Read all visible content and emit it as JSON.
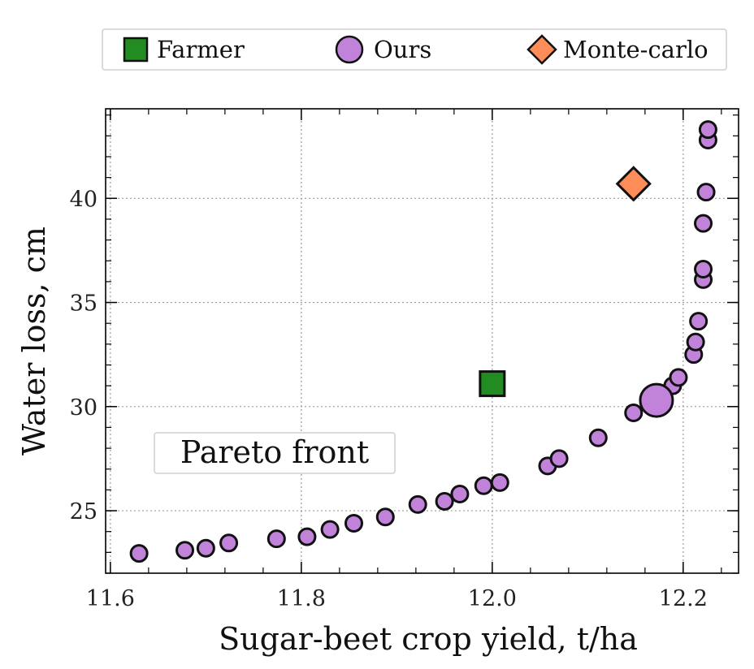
{
  "chart_data": {
    "type": "scatter",
    "xlabel": "Sugar-beet crop yield, t/ha",
    "ylabel": "Water loss, cm",
    "xlim": [
      11.595,
      12.258
    ],
    "ylim": [
      22.0,
      44.3
    ],
    "xticks": [
      11.6,
      11.8,
      12.0,
      12.2
    ],
    "xtick_labels": [
      "11.6",
      "11.8",
      "12.0",
      "12.2"
    ],
    "yticks": [
      25,
      30,
      35,
      40
    ],
    "ytick_labels": [
      "25",
      "30",
      "35",
      "40"
    ],
    "grid": true,
    "legend_position": "top, outside plot",
    "annotation": "Pareto front",
    "series": [
      {
        "name": "Farmer",
        "marker": "square",
        "color": "#228b22",
        "points": [
          [
            12.0,
            31.1
          ]
        ]
      },
      {
        "name": "Ours",
        "marker": "circle",
        "color": "#c183d9",
        "highlight": [
          12.172,
          30.3
        ],
        "points": [
          [
            11.63,
            22.95
          ],
          [
            11.678,
            23.1
          ],
          [
            11.7,
            23.2
          ],
          [
            11.724,
            23.45
          ],
          [
            11.774,
            23.65
          ],
          [
            11.806,
            23.75
          ],
          [
            11.83,
            24.1
          ],
          [
            11.855,
            24.4
          ],
          [
            11.888,
            24.7
          ],
          [
            11.922,
            25.3
          ],
          [
            11.95,
            25.45
          ],
          [
            11.966,
            25.8
          ],
          [
            11.991,
            26.2
          ],
          [
            12.008,
            26.35
          ],
          [
            12.058,
            27.15
          ],
          [
            12.07,
            27.5
          ],
          [
            12.111,
            28.5
          ],
          [
            12.148,
            29.7
          ],
          [
            12.189,
            31.0
          ],
          [
            12.195,
            31.4
          ],
          [
            12.211,
            32.5
          ],
          [
            12.213,
            33.1
          ],
          [
            12.216,
            34.1
          ],
          [
            12.221,
            36.1
          ],
          [
            12.221,
            36.6
          ],
          [
            12.221,
            38.8
          ],
          [
            12.224,
            40.3
          ],
          [
            12.226,
            42.8
          ],
          [
            12.226,
            43.3
          ]
        ]
      },
      {
        "name": "Monte-carlo",
        "marker": "diamond",
        "color": "#fc8d59",
        "points": [
          [
            12.148,
            40.7
          ]
        ]
      }
    ]
  }
}
